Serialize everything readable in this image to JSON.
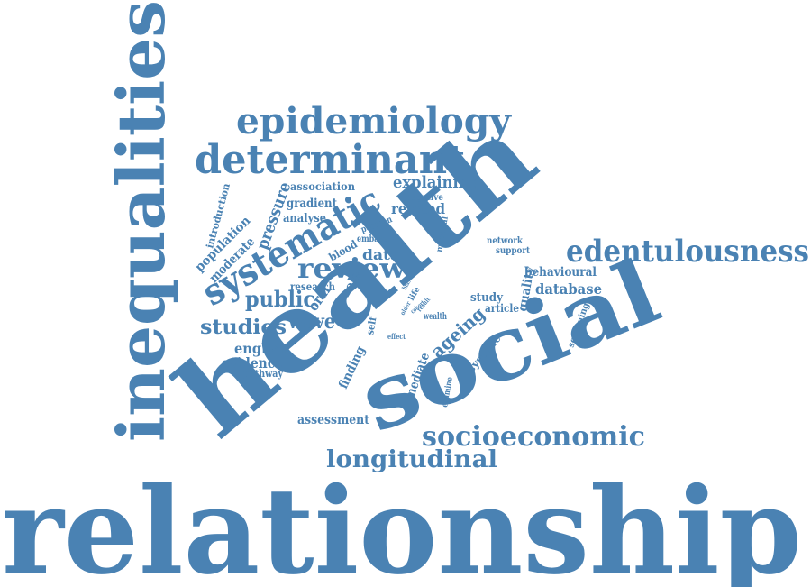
{
  "cloud": {
    "color": "#4a82b3",
    "words": [
      "relationship",
      "health",
      "social",
      "inequalities",
      "epidemiology",
      "determinant",
      "systematic",
      "edentulousness",
      "socioeconomic",
      "review",
      "longitudinal",
      "public",
      "studies",
      "wave",
      "ageing",
      "data",
      "english",
      "evidence",
      "explaining",
      "related",
      "database",
      "behavioural",
      "association",
      "gradient",
      "analyse",
      "pressure",
      "population",
      "moderate",
      "introduction",
      "research",
      "oral",
      "role",
      "blood",
      "finding",
      "mediate",
      "systolic",
      "quality",
      "study",
      "article",
      "network",
      "support",
      "screening",
      "assessment",
      "pathway",
      "negative",
      "position",
      "material",
      "self",
      "life",
      "wealth",
      "effect",
      "examine",
      "embase",
      "bias",
      "result",
      "cohort",
      "older"
    ]
  }
}
